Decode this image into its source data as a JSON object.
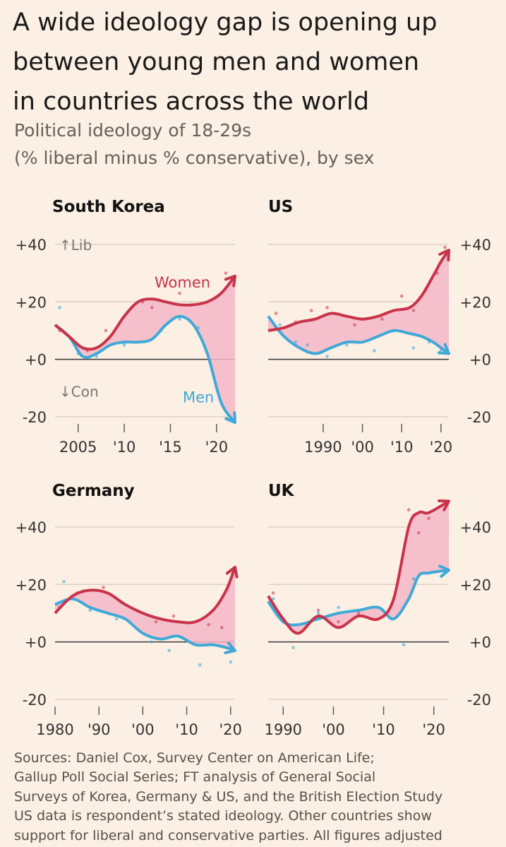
{
  "title_lines": [
    "A wide ideology gap is opening up",
    "between young men and women",
    "in countries across the world"
  ],
  "subtitle_lines": [
    "Political ideology of 18-29s",
    "(% liberal minus % conservative), by sex"
  ],
  "source_lines": [
    "Sources: Daniel Cox, Survey Center on American Life;",
    "Gallup Poll Social Series; FT analysis of General Social",
    "Surveys of Korea, Germany & US, and the British Election Study",
    "US data is respondent’s stated ideology. Other countries show",
    "support for liberal and conservative parties. All figures adjusted"
  ],
  "colors": {
    "women": "#c8334a",
    "men": "#3fa9d8",
    "gap_fill": "#f5b6c8",
    "background": "#fcefe3",
    "grid": "#d9ccbf",
    "zero_line": "#444444",
    "axis_text": "#333333"
  },
  "chart_data": [
    {
      "type": "line",
      "title": "South Korea",
      "ylim": [
        -20,
        40
      ],
      "xlim": [
        2002.5,
        2022
      ],
      "y_ticks": [
        "+40",
        "+20",
        "+0",
        "-20"
      ],
      "y_tick_values": [
        40,
        20,
        0,
        -20
      ],
      "y_axis_side": "left",
      "x_tick_values": [
        2005,
        2010,
        2015,
        2020
      ],
      "x_tick_labels": [
        "2005",
        "'10",
        "'15",
        "'20"
      ],
      "annotations": {
        "lib": "↑Lib",
        "con": "↓Con",
        "women": "Women",
        "men": "Men"
      },
      "series": [
        {
          "name": "Women",
          "x": [
            2002.5,
            2004,
            2005.5,
            2007,
            2008.5,
            2010,
            2011.5,
            2013,
            2014.5,
            2016,
            2017.5,
            2019,
            2020.5,
            2022
          ],
          "values": [
            12,
            8,
            4,
            4,
            8,
            15,
            20,
            21,
            20,
            19,
            19,
            20,
            23,
            29
          ]
        },
        {
          "name": "Men",
          "x": [
            2002.5,
            2004,
            2005.5,
            2007,
            2008.5,
            2010,
            2011.5,
            2013,
            2014.5,
            2016,
            2017.5,
            2019,
            2020.5,
            2022
          ],
          "values": [
            12,
            8,
            1,
            2,
            5,
            6,
            6,
            7,
            12,
            15,
            12,
            2,
            -15,
            -22
          ]
        }
      ],
      "scatter": {
        "women": [
          [
            2003,
            10
          ],
          [
            2006,
            3
          ],
          [
            2008,
            10
          ],
          [
            2012,
            20
          ],
          [
            2013,
            18
          ],
          [
            2016,
            23
          ],
          [
            2021,
            30
          ]
        ],
        "men": [
          [
            2003,
            18
          ],
          [
            2005,
            2
          ],
          [
            2007,
            1
          ],
          [
            2010,
            5
          ],
          [
            2014,
            10
          ],
          [
            2016,
            14
          ],
          [
            2018,
            11
          ]
        ]
      }
    },
    {
      "type": "line",
      "title": "US",
      "ylim": [
        -20,
        40
      ],
      "xlim": [
        1976,
        2022
      ],
      "y_ticks": [
        "+40",
        "+20",
        "+0",
        "-20"
      ],
      "y_tick_values": [
        40,
        20,
        0,
        -20
      ],
      "y_axis_side": "right",
      "x_tick_values": [
        1990,
        2000,
        2010,
        2020
      ],
      "x_tick_labels": [
        "1990",
        "'00",
        "'10",
        "'20"
      ],
      "series": [
        {
          "name": "Women",
          "x": [
            1976,
            1980,
            1984,
            1988,
            1992,
            1996,
            2000,
            2004,
            2008,
            2012,
            2015,
            2018,
            2020,
            2022
          ],
          "values": [
            10,
            11,
            13,
            14,
            16,
            15,
            14,
            15,
            17,
            18,
            22,
            29,
            34,
            38
          ]
        },
        {
          "name": "Men",
          "x": [
            1976,
            1980,
            1984,
            1988,
            1992,
            1996,
            2000,
            2004,
            2008,
            2012,
            2015,
            2018,
            2020,
            2022
          ],
          "values": [
            15,
            8,
            4,
            2,
            4,
            6,
            6,
            8,
            10,
            9,
            8,
            6,
            4,
            2
          ]
        }
      ],
      "scatter": {
        "women": [
          [
            1978,
            16
          ],
          [
            1983,
            13
          ],
          [
            1987,
            17
          ],
          [
            1991,
            18
          ],
          [
            1998,
            12
          ],
          [
            2005,
            14
          ],
          [
            2010,
            22
          ],
          [
            2013,
            17
          ],
          [
            2016,
            24
          ],
          [
            2019,
            30
          ],
          [
            2021,
            39
          ]
        ],
        "men": [
          [
            1979,
            12
          ],
          [
            1983,
            6
          ],
          [
            1986,
            5
          ],
          [
            1991,
            1
          ],
          [
            1996,
            5
          ],
          [
            2003,
            3
          ],
          [
            2008,
            10
          ],
          [
            2013,
            4
          ],
          [
            2017,
            6
          ],
          [
            2020,
            3
          ]
        ]
      }
    },
    {
      "type": "line",
      "title": "Germany",
      "ylim": [
        -20,
        40
      ],
      "xlim": [
        1980,
        2021
      ],
      "y_ticks": [
        "+40",
        "+20",
        "+0",
        "-20"
      ],
      "y_tick_values": [
        40,
        20,
        0,
        -20
      ],
      "y_axis_side": "left",
      "x_tick_values": [
        1980,
        1990,
        2000,
        2010,
        2020
      ],
      "x_tick_labels": [
        "1980",
        "'90",
        "'00",
        "'10",
        "'20"
      ],
      "series": [
        {
          "name": "Women",
          "x": [
            1980,
            1984,
            1988,
            1992,
            1996,
            2000,
            2004,
            2008,
            2012,
            2016,
            2019,
            2021
          ],
          "values": [
            10,
            16,
            18,
            17,
            13,
            10,
            8,
            7,
            7,
            11,
            18,
            26
          ]
        },
        {
          "name": "Men",
          "x": [
            1980,
            1984,
            1988,
            1992,
            1996,
            2000,
            2004,
            2008,
            2012,
            2016,
            2019,
            2021
          ],
          "values": [
            13,
            15,
            12,
            10,
            8,
            3,
            1,
            2,
            -1,
            -1,
            -2,
            -3
          ]
        }
      ],
      "scatter": {
        "women": [
          [
            1981,
            12
          ],
          [
            1985,
            17
          ],
          [
            1991,
            19
          ],
          [
            1995,
            14
          ],
          [
            2003,
            7
          ],
          [
            2007,
            9
          ],
          [
            2015,
            6
          ],
          [
            2018,
            5
          ]
        ],
        "men": [
          [
            1982,
            21
          ],
          [
            1988,
            11
          ],
          [
            1994,
            8
          ],
          [
            2002,
            0
          ],
          [
            2006,
            -3
          ],
          [
            2013,
            -8
          ],
          [
            2020,
            -7
          ]
        ]
      }
    },
    {
      "type": "line",
      "title": "UK",
      "ylim": [
        -20,
        40
      ],
      "xlim": [
        1987,
        2023
      ],
      "y_ticks": [
        "+40",
        "+20",
        "+0",
        "-20"
      ],
      "y_tick_values": [
        40,
        20,
        0,
        -20
      ],
      "y_axis_side": "right",
      "x_tick_values": [
        1990,
        2000,
        2010,
        2020
      ],
      "x_tick_labels": [
        "1990",
        "'00",
        "'10",
        "'20"
      ],
      "series": [
        {
          "name": "Women",
          "x": [
            1987,
            1990,
            1993,
            1997,
            2001,
            2005,
            2009,
            2012,
            2015,
            2017,
            2019,
            2023
          ],
          "values": [
            16,
            8,
            3,
            9,
            5,
            9,
            8,
            15,
            40,
            45,
            45,
            49
          ]
        },
        {
          "name": "Men",
          "x": [
            1987,
            1990,
            1993,
            1997,
            2001,
            2005,
            2009,
            2012,
            2015,
            2017,
            2019,
            2023
          ],
          "values": [
            14,
            7,
            6,
            8,
            10,
            11,
            12,
            8,
            15,
            23,
            24,
            25
          ]
        }
      ],
      "scatter": {
        "women": [
          [
            1988,
            17
          ],
          [
            1997,
            11
          ],
          [
            2001,
            7
          ],
          [
            2005,
            10
          ],
          [
            2015,
            46
          ],
          [
            2017,
            38
          ],
          [
            2019,
            43
          ]
        ],
        "men": [
          [
            1988,
            15
          ],
          [
            1992,
            -2
          ],
          [
            1997,
            10
          ],
          [
            2001,
            12
          ],
          [
            2014,
            -1
          ],
          [
            2016,
            22
          ]
        ]
      }
    }
  ]
}
